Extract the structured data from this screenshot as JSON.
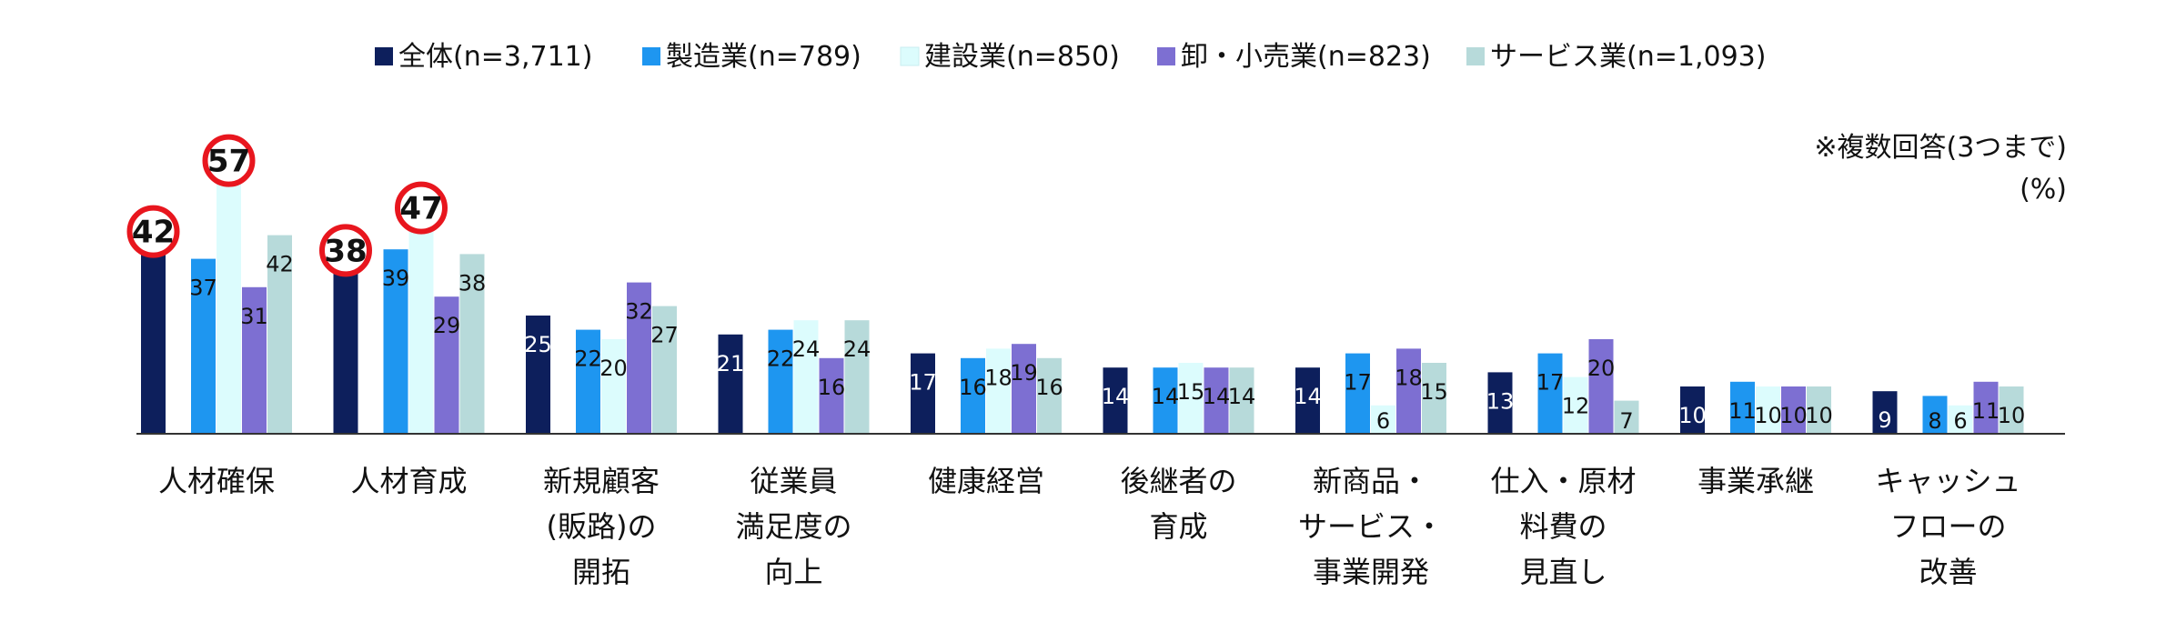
{
  "chart_data": {
    "type": "bar",
    "title": "",
    "note": "※複数回答(3つまで)",
    "unit": "(%)",
    "xlabel": "",
    "ylabel": "",
    "ylim": [
      0,
      60
    ],
    "grid": false,
    "legend_position": "top-center",
    "categories": [
      [
        "人材確保"
      ],
      [
        "人材育成"
      ],
      [
        "新規顧客",
        "(販路)の",
        "開拓"
      ],
      [
        "従業員",
        "満足度の",
        "向上"
      ],
      [
        "健康経営"
      ],
      [
        "後継者の",
        "育成"
      ],
      [
        "新商品・",
        "サービス・",
        "事業開発"
      ],
      [
        "仕入・原材",
        "料費の",
        "見直し"
      ],
      [
        "事業承継"
      ],
      [
        "キャッシュ",
        "フローの",
        "改善"
      ]
    ],
    "series": [
      {
        "name": "全体(n=3,711)",
        "color": "#0d1f5c",
        "label_color": "#ffffff",
        "values": [
          42,
          38,
          25,
          21,
          17,
          14,
          14,
          13,
          10,
          9
        ]
      },
      {
        "name": "製造業(n=789)",
        "color": "#1e96f0",
        "label_color": "#111111",
        "values": [
          37,
          39,
          22,
          22,
          16,
          14,
          17,
          17,
          11,
          8
        ]
      },
      {
        "name": "建設業(n=850)",
        "color": "#dcfcfd",
        "label_color": "#111111",
        "values": [
          57,
          47,
          20,
          24,
          18,
          15,
          6,
          12,
          10,
          6
        ]
      },
      {
        "name": "卸・小売業(n=823)",
        "color": "#7d6fd2",
        "label_color": "#111111",
        "values": [
          31,
          29,
          32,
          16,
          19,
          14,
          18,
          20,
          10,
          11
        ]
      },
      {
        "name": "サービス業(n=1,093)",
        "color": "#b7dada",
        "label_color": "#111111",
        "values": [
          42,
          38,
          27,
          24,
          16,
          14,
          15,
          7,
          10,
          10
        ]
      }
    ],
    "highlight_circle": [
      [
        0,
        0
      ],
      [
        0,
        2
      ],
      [
        1,
        0
      ],
      [
        1,
        2
      ]
    ],
    "highlight_color": "#e8161e"
  }
}
